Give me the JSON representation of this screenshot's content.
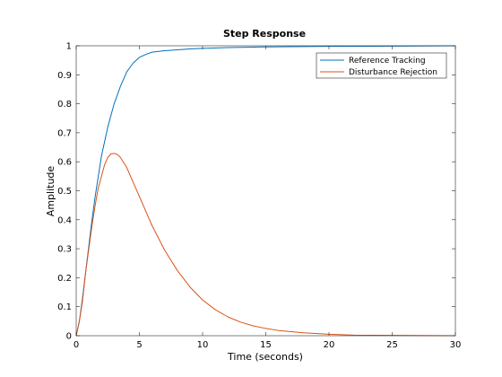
{
  "chart_data": {
    "type": "line",
    "title": "Step Response",
    "xlabel": "Time (seconds)",
    "ylabel": "Amplitude",
    "xlim": [
      0,
      30
    ],
    "ylim": [
      0,
      1
    ],
    "x_ticks": [
      0,
      5,
      10,
      15,
      20,
      25,
      30
    ],
    "y_ticks": [
      0,
      0.1,
      0.2,
      0.3,
      0.4,
      0.5,
      0.6,
      0.7,
      0.8,
      0.9,
      1
    ],
    "grid": false,
    "legend_position": "top-right",
    "series": [
      {
        "name": "Reference Tracking",
        "color": "#0072BD",
        "x": [
          0,
          0.25,
          0.5,
          0.75,
          1,
          1.25,
          1.5,
          1.75,
          2,
          2.25,
          2.5,
          2.75,
          3,
          3.5,
          4,
          4.5,
          5,
          5.5,
          6,
          7,
          8,
          9,
          10,
          12,
          15,
          20,
          25,
          30
        ],
        "y": [
          0,
          0.05,
          0.13,
          0.22,
          0.31,
          0.4,
          0.48,
          0.55,
          0.62,
          0.67,
          0.72,
          0.76,
          0.8,
          0.86,
          0.91,
          0.94,
          0.96,
          0.97,
          0.978,
          0.983,
          0.986,
          0.989,
          0.991,
          0.994,
          0.996,
          0.998,
          0.999,
          1.0
        ]
      },
      {
        "name": "Disturbance Rejection",
        "color": "#D95319",
        "x": [
          0,
          0.25,
          0.5,
          0.75,
          1,
          1.25,
          1.5,
          1.75,
          2,
          2.25,
          2.5,
          2.75,
          3,
          3.25,
          3.5,
          4,
          4.5,
          5,
          5.5,
          6,
          7,
          8,
          9,
          10,
          11,
          12,
          13,
          14,
          15,
          16,
          18,
          20,
          22,
          25,
          30
        ],
        "y": [
          0,
          0.05,
          0.12,
          0.22,
          0.3,
          0.38,
          0.45,
          0.51,
          0.55,
          0.59,
          0.615,
          0.627,
          0.629,
          0.625,
          0.615,
          0.58,
          0.53,
          0.48,
          0.43,
          0.38,
          0.295,
          0.225,
          0.168,
          0.123,
          0.09,
          0.065,
          0.047,
          0.034,
          0.025,
          0.018,
          0.01,
          0.005,
          0.002,
          0.001,
          0.0
        ]
      }
    ]
  }
}
